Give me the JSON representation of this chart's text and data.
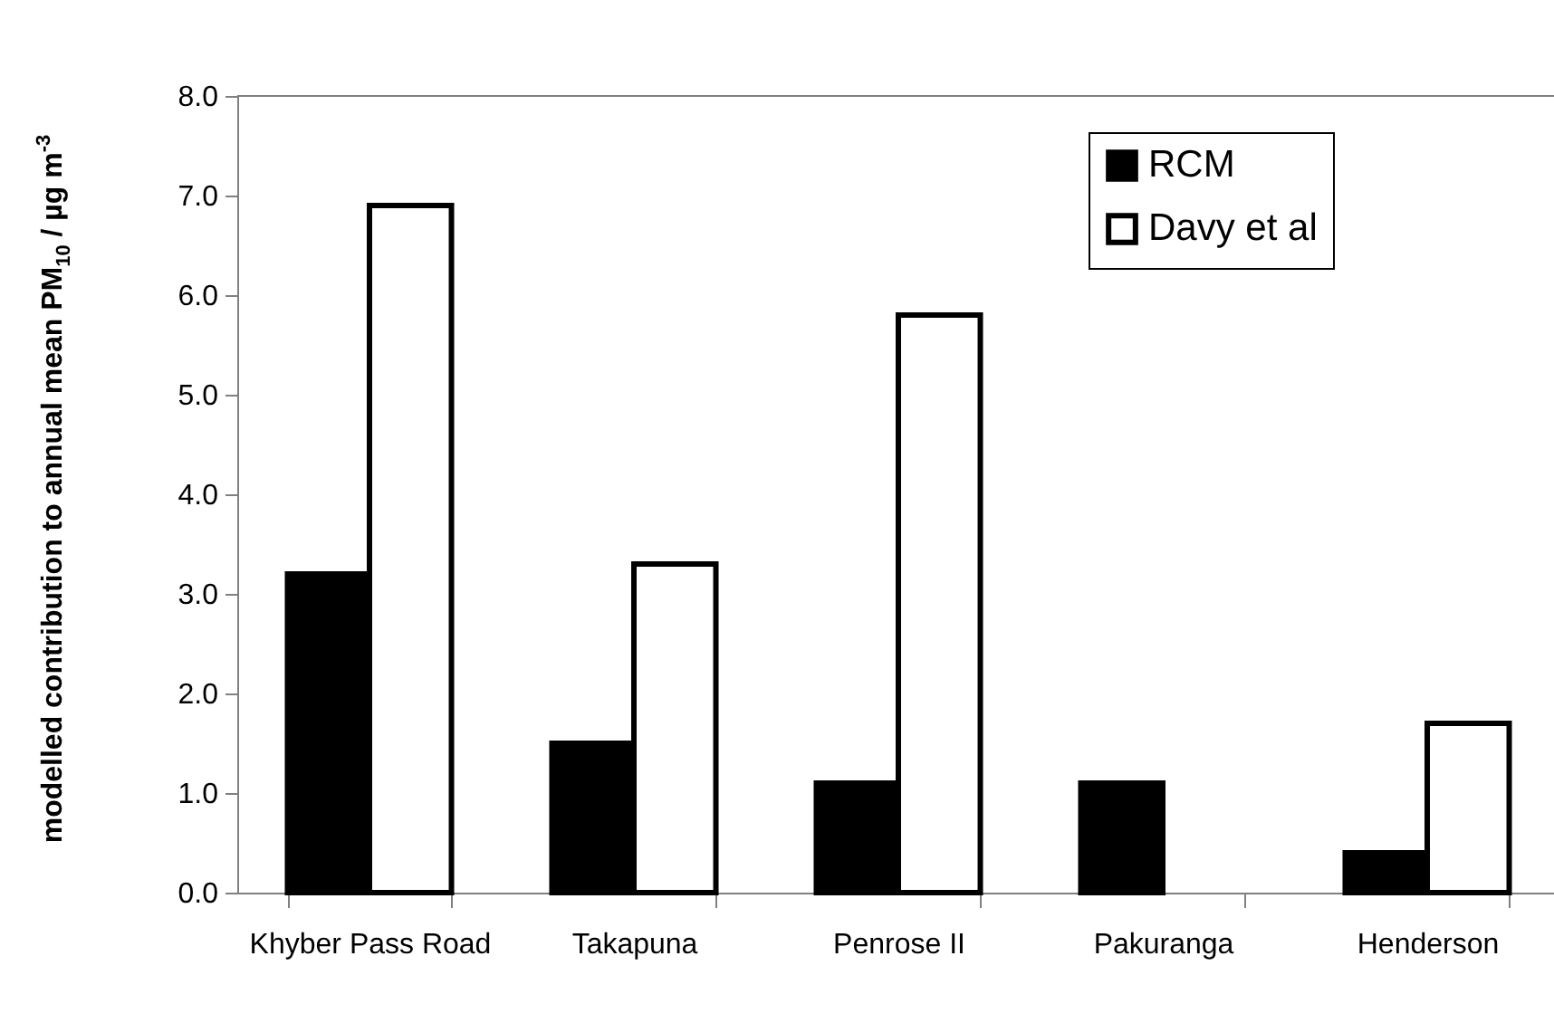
{
  "chart_data": {
    "type": "bar",
    "ylabel": "modelled contribution to annual mean PM$_{10}$ / µg m$^{-3}$",
    "categories": [
      "Khyber Pass Road",
      "Takapuna",
      "Penrose II",
      "Pakuranga",
      "Henderson"
    ],
    "series": [
      {
        "name": "RCM",
        "color": "#000000",
        "values": [
          3.2,
          1.5,
          1.1,
          1.1,
          0.4
        ]
      },
      {
        "name": "Davy et al",
        "color": "#ffffff",
        "values": [
          6.9,
          3.3,
          5.8,
          null,
          1.7
        ]
      }
    ],
    "ylim": [
      0,
      8
    ],
    "yticks": [
      {
        "value": 0,
        "label": "0.0"
      },
      {
        "value": 1,
        "label": "1.0"
      },
      {
        "value": 2,
        "label": "2.0"
      },
      {
        "value": 3,
        "label": "3.0"
      },
      {
        "value": 4,
        "label": "4.0"
      },
      {
        "value": 5,
        "label": "5.0"
      },
      {
        "value": 6,
        "label": "6.0"
      },
      {
        "value": 7,
        "label": "7.0"
      },
      {
        "value": 8,
        "label": "8.0"
      }
    ],
    "grid": false,
    "legend": "top right"
  }
}
